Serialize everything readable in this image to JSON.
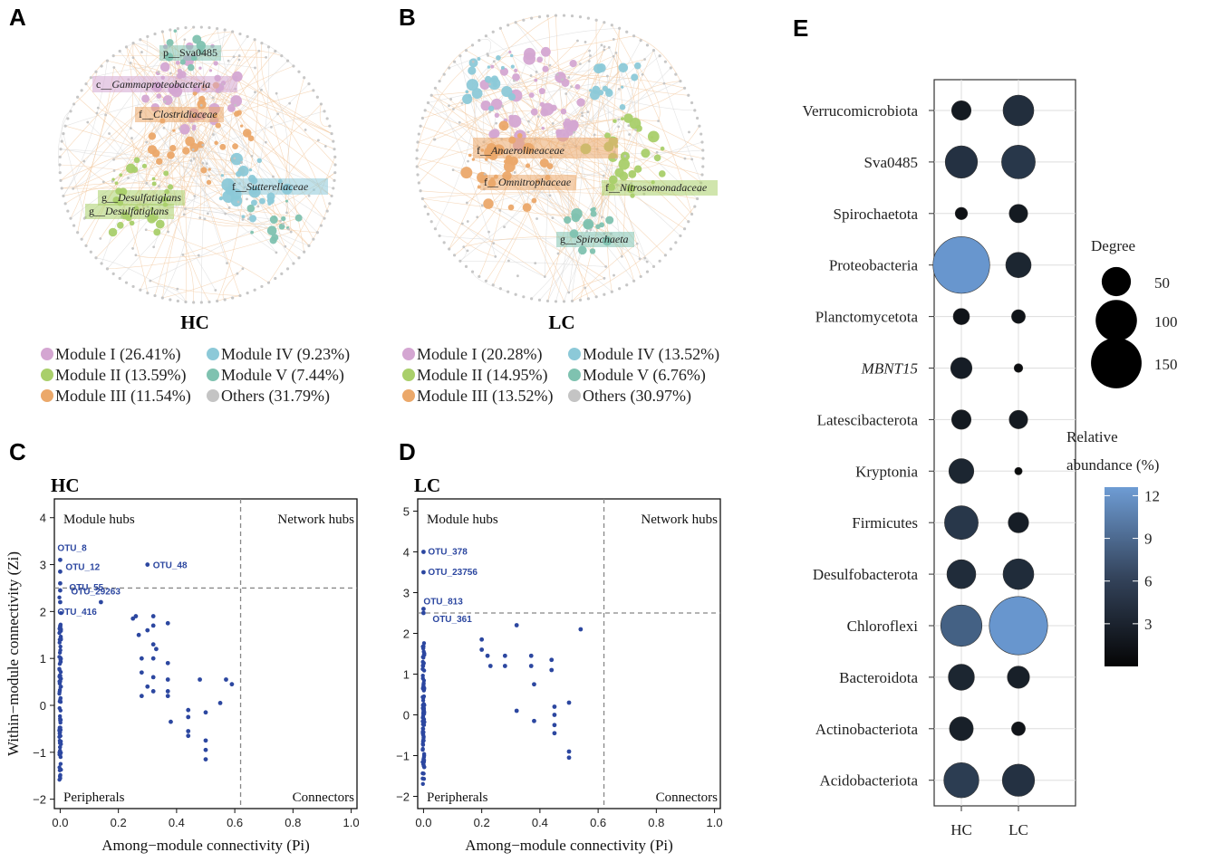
{
  "panel_labels": [
    "A",
    "B",
    "C",
    "D",
    "E"
  ],
  "colors": {
    "module_I": "#d4a6d2",
    "module_II": "#a9cf6a",
    "module_III": "#eba86a",
    "module_IV": "#8cc9d8",
    "module_V": "#7fc2b0",
    "others": "#c4c4c4",
    "point": "#2c47a0",
    "peripherals": "#2c47a0",
    "connectors": "#d0632a",
    "edge": "#f2c9a0"
  },
  "networks": {
    "A": {
      "title": "HC",
      "legend": [
        "Module I (26.41%)",
        "Module IV (9.23%)",
        "Module II (13.59%)",
        "Module V (7.44%)",
        "Module III (11.54%)",
        "Others (31.79%)"
      ],
      "labels": [
        {
          "prefix": "p__",
          "name": "Sva0485"
        },
        {
          "prefix": "c__",
          "name": "Gammaproteobacteria"
        },
        {
          "prefix": "f__",
          "name": "Clostridiaceae"
        },
        {
          "prefix": "f__",
          "name": "Sutterellaceae"
        },
        {
          "prefix": "g__",
          "name": "Desulfatiglans"
        },
        {
          "prefix": "g__",
          "name": "Desulfatiglans"
        }
      ]
    },
    "B": {
      "title": "LC",
      "legend": [
        "Module I (20.28%)",
        "Module IV (13.52%)",
        "Module II (14.95%)",
        "Module V (6.76%)",
        "Module III (13.52%)",
        "Others (30.97%)"
      ],
      "labels": [
        {
          "prefix": "f__",
          "name": "Anaerolineaceae"
        },
        {
          "prefix": "f__",
          "name": "Omnitrophaceae"
        },
        {
          "prefix": "f__",
          "name": "Nitrosomonadaceae"
        },
        {
          "prefix": "g__",
          "name": "Spirochaeta"
        }
      ]
    }
  },
  "chart_data": [
    {
      "panel": "C",
      "type": "scatter",
      "title": "HC",
      "xlabel": "Among−module connectivity (Pi)",
      "ylabel": "Within−module connectivity (Zi)",
      "xlim": [
        -0.02,
        1.02
      ],
      "ylim": [
        -2.2,
        4.4
      ],
      "xticks": [
        "0.0",
        "0.2",
        "0.4",
        "0.6",
        "0.8",
        "1.0"
      ],
      "yticks": [
        "−2",
        "−1",
        "0",
        "1",
        "2",
        "3",
        "4"
      ],
      "thresholds": {
        "x": 0.62,
        "y": 2.5
      },
      "quadrants": {
        "module_hubs": "Module hubs",
        "network_hubs": "Network hubs",
        "peripherals": "Peripherals",
        "connectors": "Connectors"
      },
      "labeled_points": [
        {
          "label": "OTU_8",
          "x": 0.0,
          "y": 3.1
        },
        {
          "label": "OTU_12",
          "x": 0.0,
          "y": 2.85
        },
        {
          "label": "OTU_29263",
          "x": 0.0,
          "y": 2.6
        },
        {
          "label": "OTU_55",
          "x": 0.0,
          "y": 2.45
        },
        {
          "label": "OTU_416",
          "x": 0.0,
          "y": 2.2
        },
        {
          "label": "OTU_48",
          "x": 0.3,
          "y": 3.0
        }
      ],
      "points": [
        [
          0.14,
          2.2
        ],
        [
          0.25,
          1.85
        ],
        [
          0.26,
          1.9
        ],
        [
          0.27,
          1.5
        ],
        [
          0.28,
          1.0
        ],
        [
          0.28,
          0.7
        ],
        [
          0.28,
          0.2
        ],
        [
          0.3,
          1.6
        ],
        [
          0.3,
          0.4
        ],
        [
          0.32,
          1.9
        ],
        [
          0.32,
          1.7
        ],
        [
          0.32,
          1.3
        ],
        [
          0.32,
          1.0
        ],
        [
          0.32,
          0.6
        ],
        [
          0.32,
          0.3
        ],
        [
          0.33,
          1.2
        ],
        [
          0.37,
          1.75
        ],
        [
          0.37,
          0.9
        ],
        [
          0.37,
          0.55
        ],
        [
          0.37,
          0.3
        ],
        [
          0.37,
          0.2
        ],
        [
          0.38,
          -0.35
        ],
        [
          0.44,
          -0.1
        ],
        [
          0.44,
          -0.25
        ],
        [
          0.44,
          -0.55
        ],
        [
          0.44,
          -0.65
        ],
        [
          0.48,
          0.55
        ],
        [
          0.5,
          -0.15
        ],
        [
          0.5,
          -0.75
        ],
        [
          0.5,
          -0.95
        ],
        [
          0.5,
          -1.15
        ],
        [
          0.55,
          0.05
        ],
        [
          0.57,
          0.55
        ],
        [
          0.59,
          0.45
        ]
      ]
    },
    {
      "panel": "D",
      "type": "scatter",
      "title": "LC",
      "xlabel": "Among−module connectivity (Pi)",
      "ylabel": "",
      "xlim": [
        -0.02,
        1.02
      ],
      "ylim": [
        -2.3,
        5.3
      ],
      "xticks": [
        "0.0",
        "0.2",
        "0.4",
        "0.6",
        "0.8",
        "1.0"
      ],
      "yticks": [
        "−2",
        "−1",
        "0",
        "1",
        "2",
        "3",
        "4",
        "5"
      ],
      "thresholds": {
        "x": 0.62,
        "y": 2.5
      },
      "quadrants": {
        "module_hubs": "Module hubs",
        "network_hubs": "Network hubs",
        "peripherals": "Peripherals",
        "connectors": "Connectors"
      },
      "labeled_points": [
        {
          "label": "OTU_378",
          "x": 0.0,
          "y": 4.0
        },
        {
          "label": "OTU_23756",
          "x": 0.0,
          "y": 3.5
        },
        {
          "label": "OTU_813",
          "x": 0.0,
          "y": 2.6
        },
        {
          "label": "OTU_361",
          "x": 0.0,
          "y": 2.5
        }
      ],
      "points": [
        [
          0.2,
          1.85
        ],
        [
          0.2,
          1.6
        ],
        [
          0.22,
          1.45
        ],
        [
          0.23,
          1.2
        ],
        [
          0.28,
          1.45
        ],
        [
          0.28,
          1.2
        ],
        [
          0.32,
          2.2
        ],
        [
          0.32,
          0.1
        ],
        [
          0.37,
          1.45
        ],
        [
          0.37,
          1.2
        ],
        [
          0.38,
          0.75
        ],
        [
          0.38,
          -0.15
        ],
        [
          0.44,
          1.35
        ],
        [
          0.44,
          1.1
        ],
        [
          0.45,
          0.2
        ],
        [
          0.45,
          0.0
        ],
        [
          0.45,
          -0.25
        ],
        [
          0.45,
          -0.45
        ],
        [
          0.5,
          0.3
        ],
        [
          0.5,
          -0.9
        ],
        [
          0.5,
          -1.05
        ],
        [
          0.54,
          2.1
        ]
      ]
    },
    {
      "panel": "E",
      "type": "scatter",
      "title": "",
      "categories_x": [
        "HC",
        "LC"
      ],
      "categories_y": [
        "Verrucomicrobiota",
        "Sva0485",
        "Spirochaetota",
        "Proteobacteria",
        "Planctomycetota",
        "MBNT15",
        "Latescibacterota",
        "Kryptonia",
        "Firmicutes",
        "Desulfobacterota",
        "Chloroflexi",
        "Bacteroidota",
        "Actinobacteriota",
        "Acidobacteriota"
      ],
      "italic_y": [
        "MBNT15"
      ],
      "series": [
        {
          "name": "HC",
          "degree": [
            20,
            55,
            8,
            170,
            14,
            24,
            20,
            33,
            60,
            44,
            90,
            36,
            30,
            65
          ],
          "abundance": [
            1.5,
            3.5,
            0.8,
            12.0,
            1.0,
            1.8,
            1.5,
            2.5,
            4.0,
            3.0,
            7.5,
            2.5,
            2.0,
            4.5
          ]
        },
        {
          "name": "LC",
          "degree": [
            50,
            60,
            18,
            34,
            10,
            4,
            18,
            3,
            22,
            50,
            180,
            26,
            10,
            55
          ],
          "abundance": [
            3.2,
            4.0,
            1.5,
            2.5,
            1.0,
            0.5,
            1.5,
            0.3,
            1.8,
            3.0,
            12.0,
            2.0,
            1.0,
            3.5
          ]
        }
      ],
      "legend_degree": {
        "title": "Degree",
        "values": [
          50,
          100,
          150
        ]
      },
      "legend_color": {
        "title_line1": "Relative",
        "title_line2": "abundance (%)",
        "ticks": [
          12,
          9,
          6,
          3
        ],
        "range": [
          0,
          12.6
        ]
      }
    }
  ]
}
